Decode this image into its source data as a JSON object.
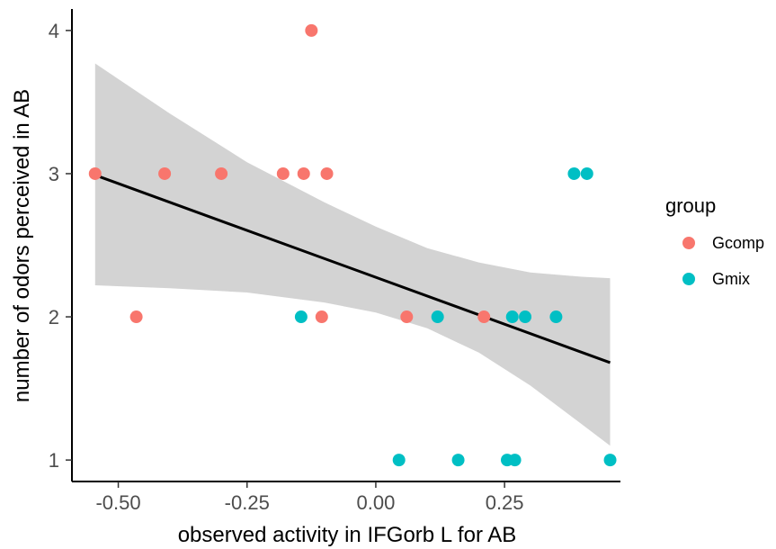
{
  "chart_data": {
    "type": "scatter",
    "xlabel": "observed activity in IFGorb L for AB",
    "ylabel": "number of odors perceived in AB",
    "xlim": [
      -0.59,
      0.475
    ],
    "ylim": [
      0.85,
      4.15
    ],
    "x_ticks": [
      -0.5,
      -0.25,
      0.0,
      0.25
    ],
    "x_tick_labels": [
      "-0.50",
      "-0.25",
      "0.00",
      "0.25"
    ],
    "y_ticks": [
      1,
      2,
      3,
      4
    ],
    "y_tick_labels": [
      "1",
      "2",
      "3",
      "4"
    ],
    "grid": false,
    "legend": {
      "title": "group",
      "position": "right",
      "entries": [
        {
          "label": "Gcomp",
          "color": "#F8766D"
        },
        {
          "label": "Gmix",
          "color": "#00BFC4"
        }
      ]
    },
    "series": [
      {
        "name": "Gcomp",
        "color": "#F8766D",
        "points": [
          {
            "x": -0.545,
            "y": 3
          },
          {
            "x": -0.41,
            "y": 3
          },
          {
            "x": -0.3,
            "y": 3
          },
          {
            "x": -0.18,
            "y": 3
          },
          {
            "x": -0.14,
            "y": 3
          },
          {
            "x": -0.095,
            "y": 3
          },
          {
            "x": -0.125,
            "y": 4
          },
          {
            "x": -0.465,
            "y": 2
          },
          {
            "x": -0.105,
            "y": 2
          },
          {
            "x": 0.06,
            "y": 2
          },
          {
            "x": 0.21,
            "y": 2
          }
        ]
      },
      {
        "name": "Gmix",
        "color": "#00BFC4",
        "points": [
          {
            "x": -0.145,
            "y": 2
          },
          {
            "x": 0.12,
            "y": 2
          },
          {
            "x": 0.265,
            "y": 2
          },
          {
            "x": 0.29,
            "y": 2
          },
          {
            "x": 0.35,
            "y": 2
          },
          {
            "x": 0.385,
            "y": 3
          },
          {
            "x": 0.41,
            "y": 3
          },
          {
            "x": 0.045,
            "y": 1
          },
          {
            "x": 0.16,
            "y": 1
          },
          {
            "x": 0.255,
            "y": 1
          },
          {
            "x": 0.27,
            "y": 1
          },
          {
            "x": 0.455,
            "y": 1
          }
        ]
      }
    ],
    "regression": {
      "x_start": -0.545,
      "y_start": 2.99,
      "x_end": 0.455,
      "y_end": 1.68,
      "color": "#000000"
    },
    "confidence_band": {
      "color": "#d3d3d3",
      "x": [
        -0.545,
        -0.4,
        -0.25,
        -0.1,
        0.0,
        0.1,
        0.2,
        0.3,
        0.4,
        0.455
      ],
      "upper": [
        3.77,
        3.42,
        3.08,
        2.8,
        2.63,
        2.48,
        2.38,
        2.31,
        2.28,
        2.27
      ],
      "lower": [
        2.22,
        2.2,
        2.17,
        2.1,
        2.03,
        1.92,
        1.75,
        1.52,
        1.25,
        1.1
      ]
    }
  }
}
